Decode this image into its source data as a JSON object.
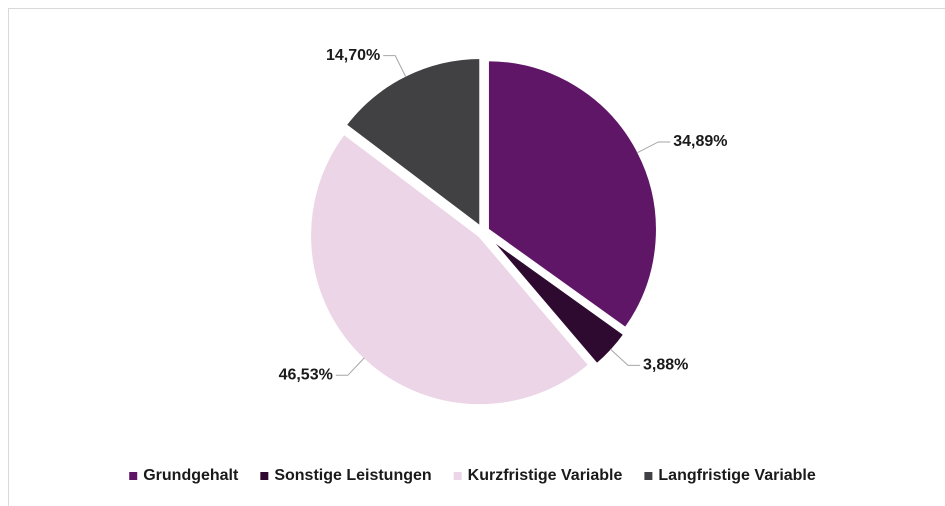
{
  "chart_data": {
    "type": "pie",
    "categories": [
      "Grundgehalt",
      "Sonstige Leistungen",
      "Kurzfristige Variable",
      "Langfristige Variable"
    ],
    "values": [
      34.89,
      3.88,
      46.53,
      14.7
    ],
    "value_labels": [
      "34,89%",
      "3,88%",
      "46,53%",
      "14,70%"
    ],
    "colors": [
      "#5f1667",
      "#2e0a30",
      "#ecd5e6",
      "#414042"
    ],
    "legend": "bottom"
  }
}
